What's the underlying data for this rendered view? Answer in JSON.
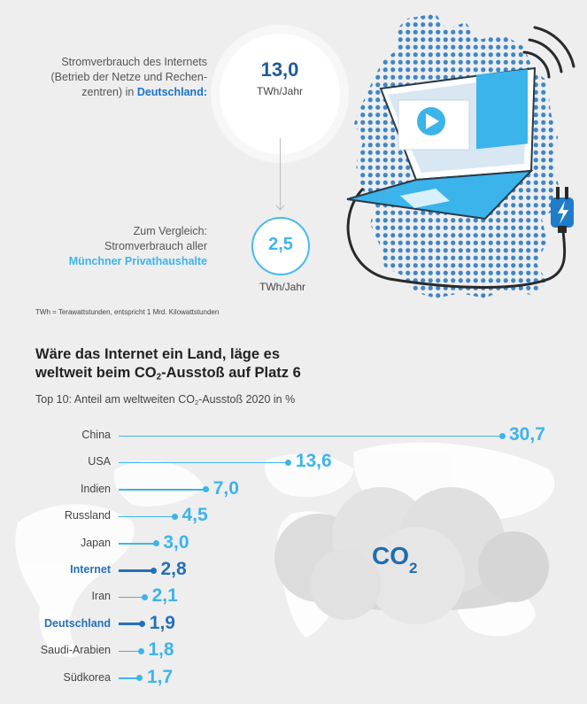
{
  "top": {
    "de_text_lines": [
      "Stromverbrauch des Internets",
      "(Betrieb der Netze und Rechen-",
      "zentren) in "
    ],
    "de_text_highlight": "Deutschland:",
    "de_value": "13,0",
    "de_unit": "TWh/Jahr",
    "cmp_text_lines": [
      "Zum Vergleich:",
      "Stromverbrauch aller"
    ],
    "cmp_text_highlight": "Münchner Privathaushalte",
    "cmp_value": "2,5",
    "cmp_unit": "TWh/Jahr",
    "footnote": "TWh = Terawattstunden, entspricht 1 Mrd. Kilowattstunden"
  },
  "illustration": {
    "icons": [
      "germany-dot-map-icon",
      "laptop-icon",
      "play-icon",
      "power-plug-icon",
      "lightning-icon"
    ]
  },
  "colors": {
    "light_blue": "#3db4ea",
    "dark_blue": "#2470b8",
    "map_dots": "#3f86c7"
  },
  "chart_data": {
    "type": "bar",
    "orientation": "horizontal",
    "title_line1": "Wäre das Internet ein Land, läge es",
    "title_line2_pre": "weltweit beim CO",
    "title_line2_sub": "2",
    "title_line2_post": "-Ausstoß auf Platz 6",
    "subtitle_pre": "Top 10: Anteil am weltweiten CO",
    "subtitle_sub": "2",
    "subtitle_post": "-Ausstoß 2020 in %",
    "categories": [
      "China",
      "USA",
      "Indien",
      "Russland",
      "Japan",
      "Internet",
      "Iran",
      "Deutschland",
      "Saudi-Arabien",
      "Südkorea"
    ],
    "values": [
      30.7,
      13.6,
      7.0,
      4.5,
      3.0,
      2.8,
      2.1,
      1.9,
      1.8,
      1.7
    ],
    "value_labels": [
      "30,7",
      "13,6",
      "7,0",
      "4,5",
      "3,0",
      "2,8",
      "2,1",
      "1,9",
      "1,8",
      "1,7"
    ],
    "highlighted": [
      "Internet",
      "Deutschland"
    ],
    "xlim": [
      0,
      30.7
    ],
    "background_label": "CO",
    "background_label_sub": "2"
  }
}
